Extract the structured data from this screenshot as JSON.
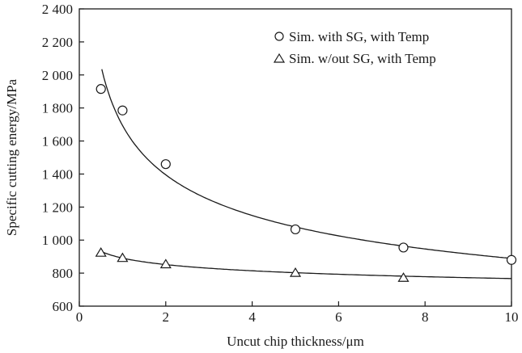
{
  "chart_data": {
    "type": "scatter",
    "title": "",
    "xlabel": "Uncut chip thickness/μm",
    "ylabel": "Specific cutting energy/MPa",
    "xlim": [
      0,
      10
    ],
    "ylim": [
      600,
      2400
    ],
    "xticks": [
      0,
      2,
      4,
      6,
      8,
      10
    ],
    "xtick_labels": [
      "0",
      "2",
      "4",
      "6",
      "8",
      "10"
    ],
    "yticks": [
      600,
      800,
      1000,
      1200,
      1400,
      1600,
      1800,
      2000,
      2200,
      2400
    ],
    "ytick_labels": [
      "600",
      "800",
      "1 000",
      "1 200",
      "1 400",
      "1 600",
      "1 800",
      "2 000",
      "2 200",
      "2 400"
    ],
    "grid": false,
    "legend_position": "top-right",
    "series": [
      {
        "name": "Sim. with SG, with Temp",
        "marker": "circle",
        "x": [
          0.5,
          1,
          2,
          5,
          7.5,
          10
        ],
        "y": [
          1915,
          1785,
          1460,
          1065,
          955,
          880
        ],
        "trendline": "power"
      },
      {
        "name": "Sim. w/out SG, with Temp",
        "marker": "triangle",
        "x": [
          0.5,
          1,
          2,
          5,
          7.5
        ],
        "y": [
          922,
          890,
          852,
          800,
          770
        ],
        "trendline": "power"
      }
    ],
    "color": "#1a1a1a"
  }
}
